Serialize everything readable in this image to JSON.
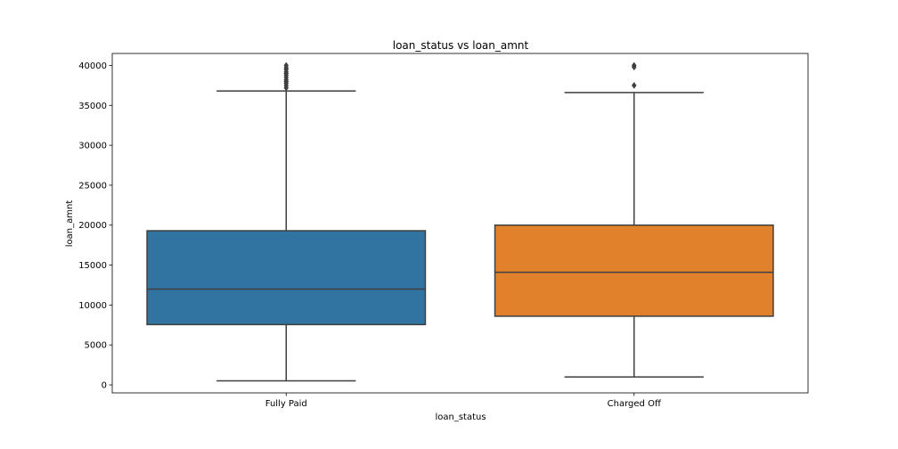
{
  "chart_data": {
    "type": "box",
    "title": "loan_status vs loan_amnt",
    "xlabel": "loan_status",
    "ylabel": "loan_amnt",
    "categories": [
      "Fully Paid",
      "Charged Off"
    ],
    "ylim": [
      -1000,
      41500
    ],
    "yticks": [
      0,
      5000,
      10000,
      15000,
      20000,
      25000,
      30000,
      35000,
      40000
    ],
    "ytick_labels": [
      "0",
      "5000",
      "10000",
      "15000",
      "20000",
      "25000",
      "30000",
      "35000",
      "40000"
    ],
    "grid": false,
    "boxes": [
      {
        "category": "Fully Paid",
        "color": "#3274a1",
        "whisker_low": 500,
        "q1": 7550,
        "median": 12000,
        "q3": 19300,
        "whisker_high": 36800,
        "outliers": [
          37200,
          37500,
          37800,
          38000,
          38200,
          38500,
          38800,
          39000,
          39200,
          39500,
          39700,
          40000
        ]
      },
      {
        "category": "Charged Off",
        "color": "#e1812c",
        "whisker_low": 1000,
        "q1": 8600,
        "median": 14100,
        "q3": 20000,
        "whisker_high": 36600,
        "outliers": [
          37500,
          39800,
          40000
        ]
      }
    ]
  }
}
